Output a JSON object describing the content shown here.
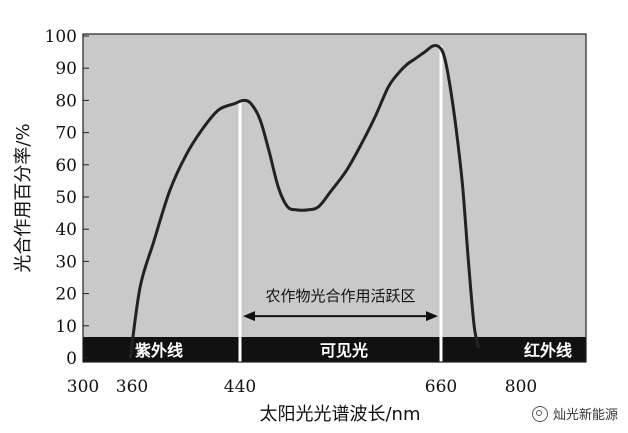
{
  "chart_data": {
    "type": "line",
    "ylabel": "光合作用百分率/%",
    "xlabel": "太阳光光谱波长/nm",
    "xlim": [
      300,
      840
    ],
    "ylim": [
      0,
      100
    ],
    "x_ticks": [
      300,
      360,
      440,
      660,
      800
    ],
    "y_ticks": [
      0,
      10,
      20,
      30,
      40,
      50,
      60,
      70,
      80,
      90,
      100
    ],
    "grid": false,
    "colors": {
      "plot_background": "#c9c9c9",
      "line": "#222222",
      "band": "#111111",
      "marker_line": "#ffffff"
    },
    "series": [
      {
        "x": [
          358,
          366,
          376,
          388,
          400,
          412,
          424,
          436,
          444,
          452,
          462,
          472,
          482,
          492,
          502,
          514,
          526,
          540,
          556,
          572,
          588,
          602,
          612,
          622,
          632,
          642,
          652,
          660,
          668,
          678,
          688,
          698,
          708,
          718,
          726
        ],
        "values": [
          0,
          22,
          36,
          52,
          63,
          71,
          77,
          79,
          80,
          79,
          74,
          64,
          53,
          47,
          46,
          46,
          47,
          52,
          58,
          66,
          75,
          84,
          88,
          91,
          93,
          95,
          97,
          96,
          92,
          82,
          69,
          53,
          30,
          10,
          3
        ]
      }
    ],
    "bands": [
      {
        "label": "紫外线"
      },
      {
        "label": "可见光"
      },
      {
        "label": "红外线"
      }
    ],
    "markers": [
      {
        "x": 440
      },
      {
        "x": 660
      }
    ],
    "annotation": {
      "text": "农作物光合作用活跃区",
      "from": 440,
      "to": 660,
      "y": 13
    }
  },
  "watermark": {
    "text": "灿光新能源",
    "icon": "wechat-icon"
  }
}
